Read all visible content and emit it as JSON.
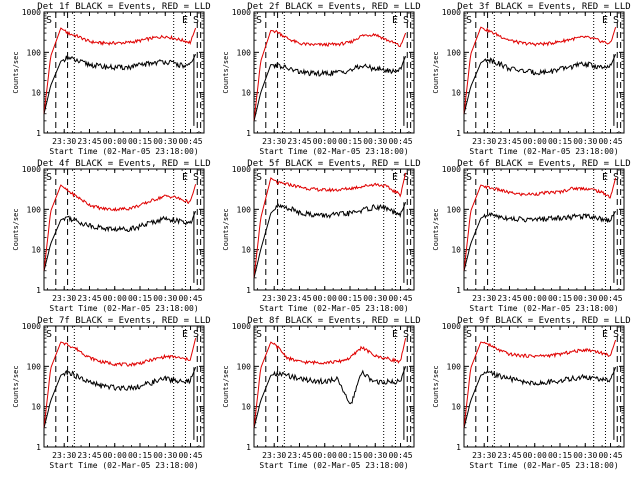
{
  "panels": [
    {
      "title": "Det 1f BLACK = Events, RED = LLD",
      "marks": [
        "S",
        "E",
        "S"
      ]
    },
    {
      "title": "Det 2f BLACK = Events, RED = LLD",
      "marks": [
        "S",
        "E",
        "S"
      ]
    },
    {
      "title": "Det 3f BLACK = Events, RED = LLD",
      "marks": [
        "S",
        "E",
        "S"
      ]
    },
    {
      "title": "Det 4f BLACK = Events, RED = LLD",
      "marks": [
        "S",
        "E",
        "S"
      ]
    },
    {
      "title": "Det 5f BLACK = Events, RED = LLD",
      "marks": [
        "S",
        "E",
        "S"
      ]
    },
    {
      "title": "Det 6f BLACK = Events, RED = LLD",
      "marks": [
        "S",
        "E",
        "S"
      ]
    },
    {
      "title": "Det 7f BLACK = Events, RED = LLD",
      "marks": [
        "S",
        "E",
        "S"
      ]
    },
    {
      "title": "Det 8f BLACK = Events, RED = LLD",
      "marks": [
        "S",
        "E",
        "S"
      ]
    },
    {
      "title": "Det 9f BLACK = Events, RED = LLD",
      "marks": [
        "S",
        "E",
        "S"
      ]
    }
  ],
  "ylabel": "Counts/sec",
  "xlabel": "Start Time (02-Mar-05 23:18:00)",
  "colors": {
    "events": "#000000",
    "lld": "#e00000"
  },
  "chart_data": {
    "type": "line",
    "xlabel": "Start Time (02-Mar-05 23:18:00)",
    "ylabel": "Counts/sec",
    "yscale": "log",
    "ylim": [
      1,
      1000
    ],
    "yticks": [
      1,
      10,
      100,
      1000
    ],
    "ytick_labels": [
      "1",
      "10",
      "100",
      "1000"
    ],
    "xlim": [
      "23:18",
      "00:53"
    ],
    "xticks": [
      "23:30",
      "23:45",
      "00:00",
      "00:15",
      "00:30",
      "00:45"
    ],
    "vlines": {
      "dashed": [
        "23:25",
        "23:32",
        "00:49",
        "00:51"
      ],
      "dotted": [
        "23:36",
        "00:35",
        "00:42"
      ]
    },
    "x": [
      "23:18",
      "23:22",
      "23:28",
      "23:32",
      "23:38",
      "23:45",
      "23:52",
      "00:00",
      "00:08",
      "00:15",
      "00:22",
      "00:30",
      "00:36",
      "00:42",
      "00:45",
      "00:48"
    ],
    "series": [
      {
        "detector": "1f",
        "events": [
          3,
          15,
          60,
          75,
          60,
          50,
          45,
          42,
          43,
          48,
          55,
          60,
          52,
          45,
          48,
          90
        ],
        "lld": [
          3,
          80,
          400,
          300,
          250,
          185,
          170,
          170,
          175,
          195,
          225,
          250,
          220,
          190,
          175,
          400
        ]
      },
      {
        "detector": "2f",
        "events": [
          2,
          10,
          50,
          48,
          40,
          33,
          30,
          30,
          32,
          36,
          46,
          40,
          36,
          34,
          40,
          80
        ],
        "lld": [
          2,
          60,
          350,
          320,
          220,
          165,
          155,
          155,
          160,
          175,
          260,
          280,
          210,
          165,
          140,
          300
        ]
      },
      {
        "detector": "3f",
        "events": [
          3,
          14,
          55,
          70,
          55,
          40,
          35,
          32,
          33,
          38,
          45,
          52,
          46,
          40,
          45,
          90
        ],
        "lld": [
          3,
          90,
          420,
          350,
          270,
          200,
          170,
          160,
          165,
          185,
          215,
          240,
          210,
          175,
          165,
          420
        ]
      },
      {
        "detector": "4f",
        "events": [
          3,
          14,
          55,
          65,
          50,
          40,
          35,
          32,
          33,
          38,
          48,
          60,
          55,
          45,
          45,
          90
        ],
        "lld": [
          3,
          90,
          400,
          290,
          200,
          130,
          105,
          100,
          105,
          125,
          165,
          215,
          200,
          160,
          150,
          420
        ]
      },
      {
        "detector": "5f",
        "events": [
          2,
          10,
          80,
          120,
          110,
          85,
          75,
          70,
          75,
          80,
          95,
          115,
          110,
          80,
          70,
          150
        ],
        "lld": [
          2,
          60,
          600,
          450,
          420,
          360,
          320,
          300,
          305,
          330,
          370,
          420,
          380,
          270,
          230,
          800
        ]
      },
      {
        "detector": "6f",
        "events": [
          3,
          14,
          60,
          75,
          68,
          60,
          57,
          55,
          60,
          62,
          65,
          70,
          65,
          55,
          55,
          90
        ],
        "lld": [
          3,
          90,
          400,
          350,
          310,
          260,
          235,
          240,
          260,
          270,
          330,
          330,
          300,
          240,
          200,
          600
        ]
      },
      {
        "detector": "7f",
        "events": [
          3,
          14,
          60,
          75,
          55,
          40,
          33,
          30,
          30,
          32,
          40,
          50,
          45,
          40,
          45,
          95
        ],
        "lld": [
          3,
          90,
          400,
          350,
          260,
          165,
          130,
          115,
          110,
          120,
          145,
          175,
          170,
          150,
          150,
          500
        ]
      },
      {
        "detector": "8f",
        "events": [
          3,
          14,
          60,
          65,
          60,
          50,
          45,
          42,
          50,
          10,
          70,
          40,
          42,
          40,
          45,
          100
        ],
        "lld": [
          3,
          90,
          400,
          300,
          160,
          130,
          125,
          125,
          130,
          160,
          300,
          180,
          160,
          140,
          130,
          500
        ]
      },
      {
        "detector": "9f",
        "events": [
          3,
          14,
          60,
          70,
          60,
          50,
          42,
          38,
          40,
          45,
          50,
          55,
          50,
          45,
          45,
          95
        ],
        "lld": [
          3,
          90,
          400,
          360,
          260,
          200,
          185,
          180,
          185,
          200,
          230,
          260,
          240,
          200,
          185,
          450
        ]
      }
    ]
  }
}
